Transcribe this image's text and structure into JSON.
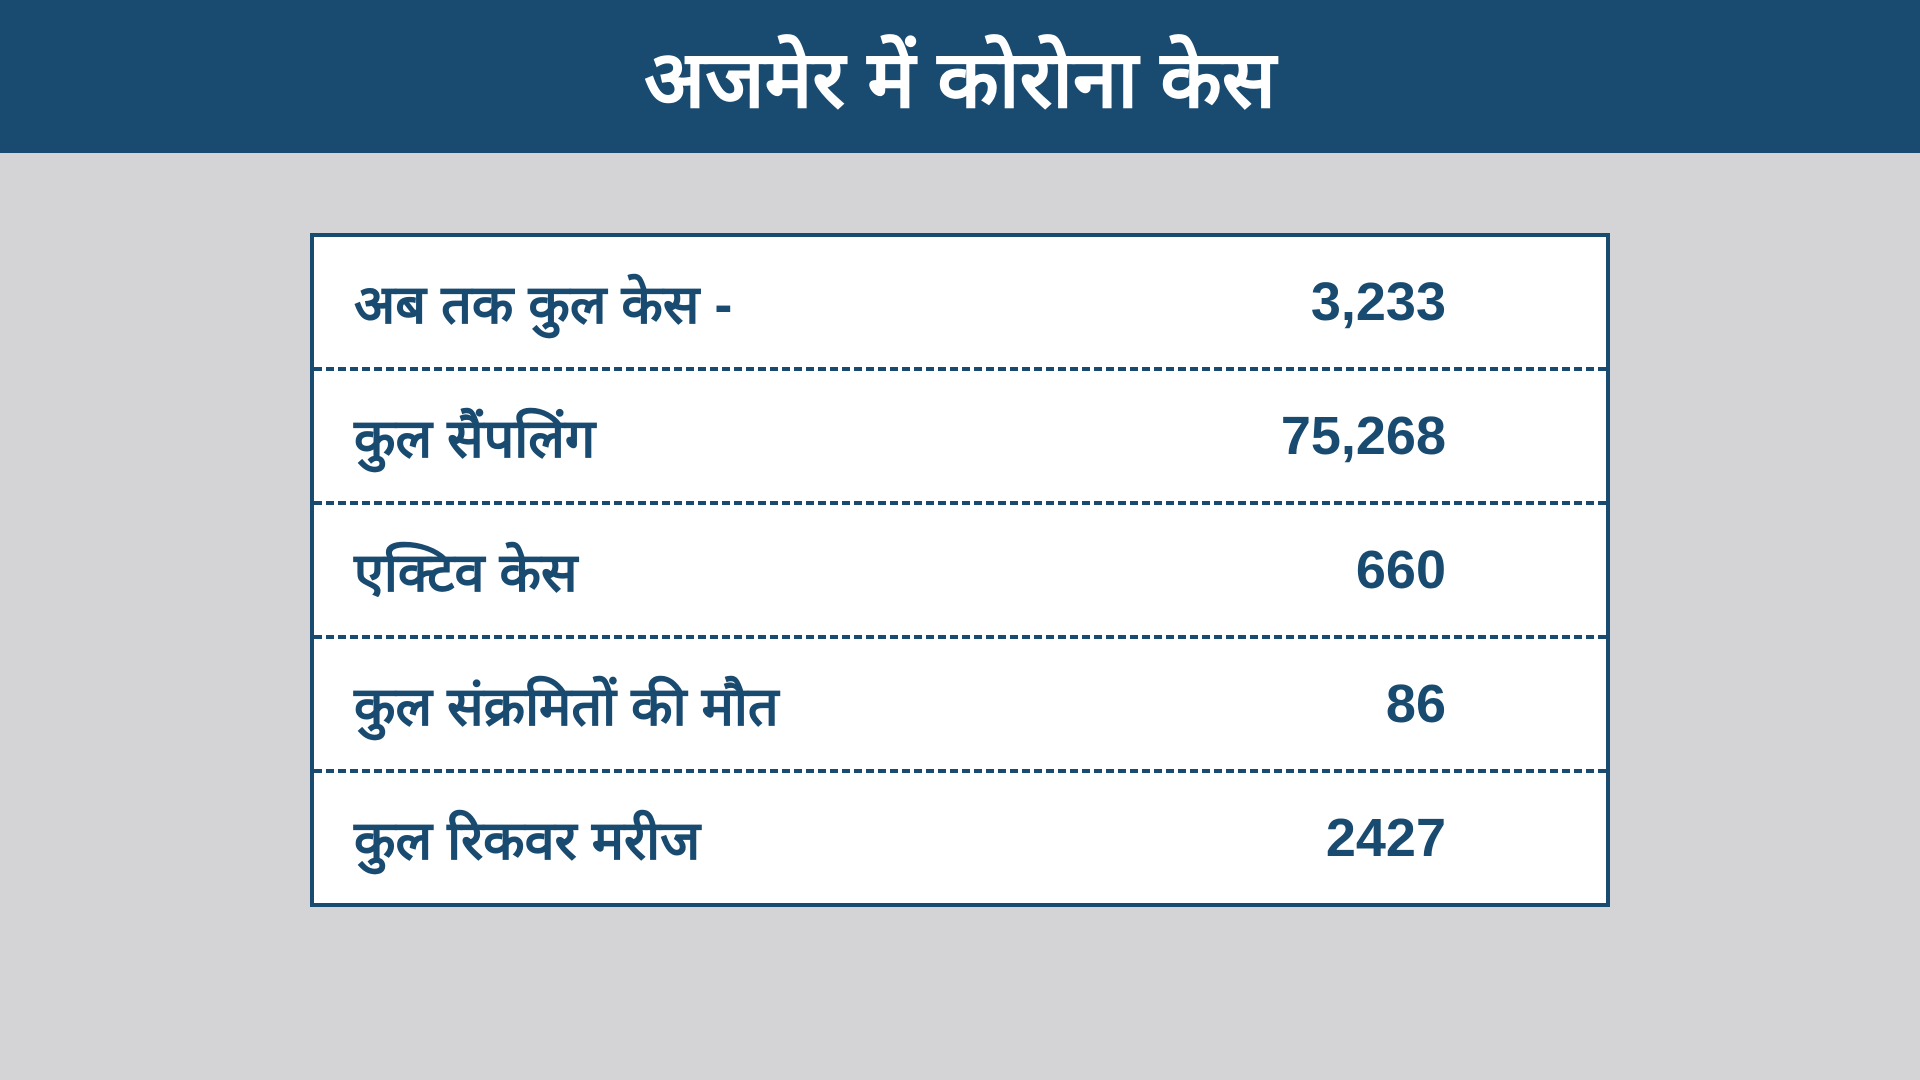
{
  "type": "infographic-table",
  "header": {
    "title": "अजमेर में कोरोना केस",
    "background_color": "#194a6f",
    "text_color": "#ffffff",
    "fontsize": 80
  },
  "body": {
    "background_color": "#d4d4d6"
  },
  "table": {
    "background_color": "#ffffff",
    "border_color": "#194a6f",
    "border_width": 4,
    "divider_style": "dashed",
    "text_color": "#194a6f",
    "fontsize": 54,
    "rows": [
      {
        "label": "अब तक कुल केस -",
        "value": "3,233"
      },
      {
        "label": "कुल सैंपलिंग",
        "value": "75,268"
      },
      {
        "label": "एक्टिव केस",
        "value": "660"
      },
      {
        "label": "कुल संक्रमितों की मौत",
        "value": "86"
      },
      {
        "label": "कुल रिकवर मरीज",
        "value": "2427"
      }
    ]
  }
}
